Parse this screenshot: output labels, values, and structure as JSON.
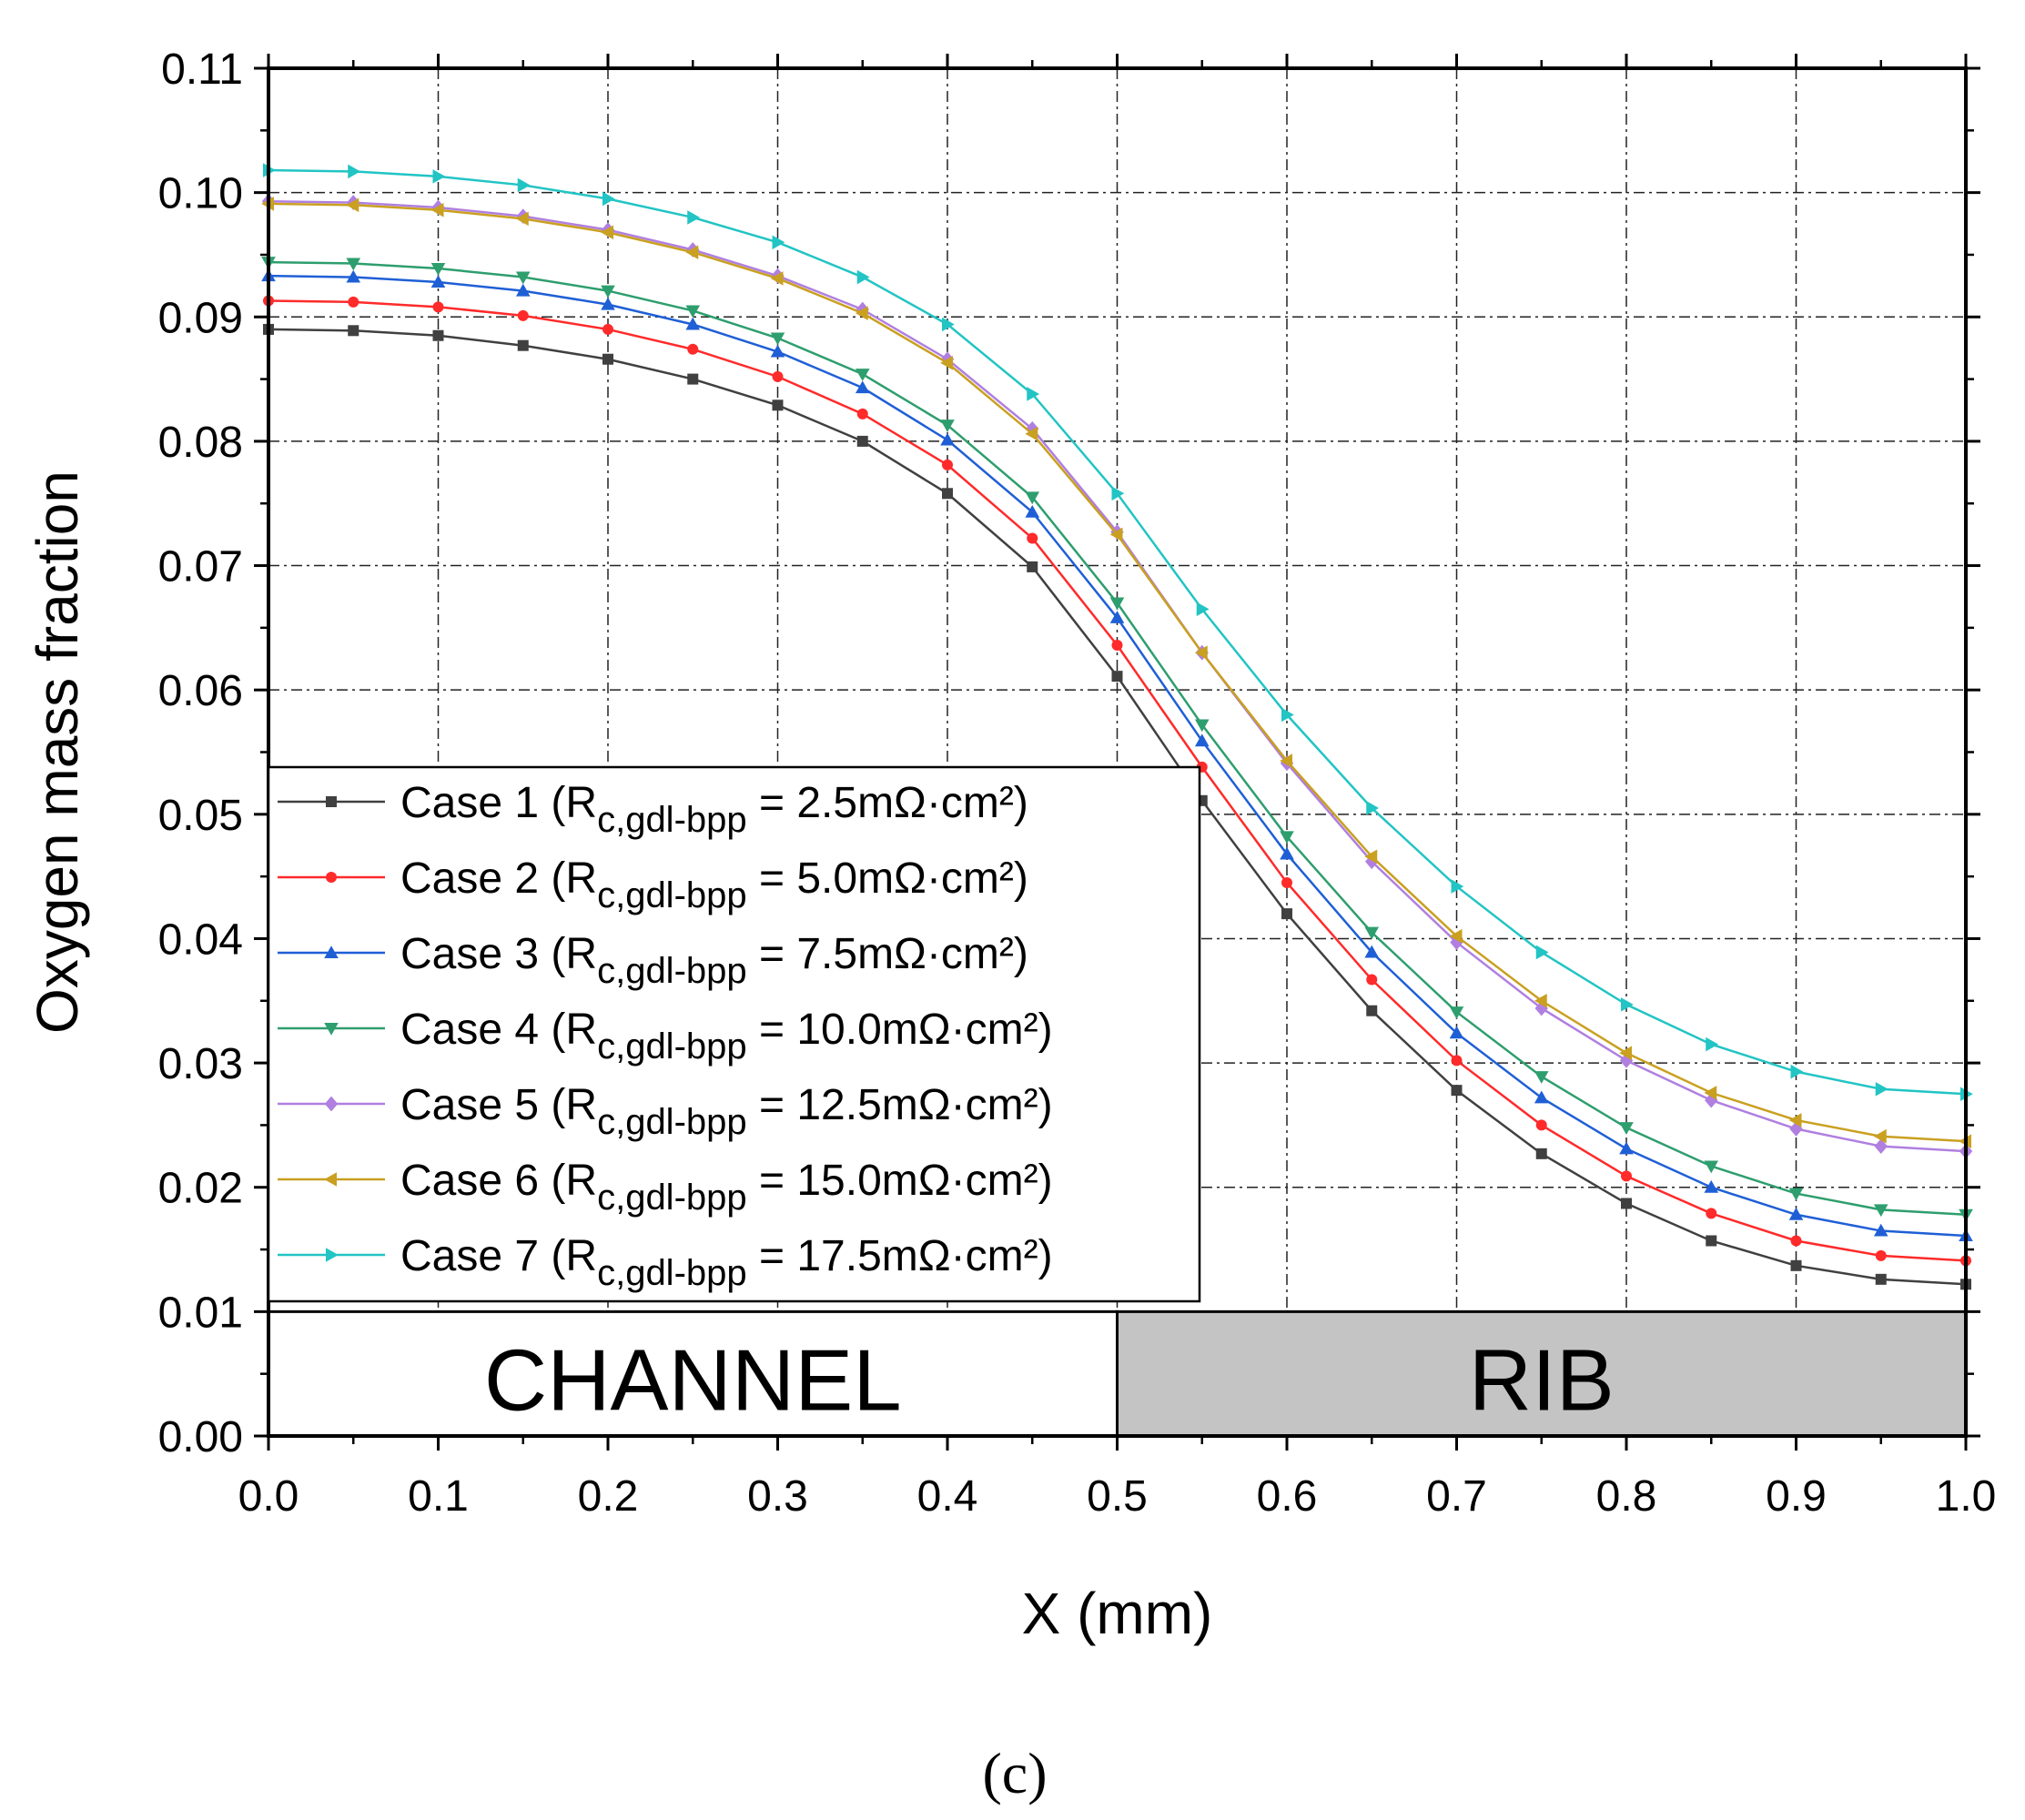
{
  "chart_data": {
    "type": "line",
    "title": "",
    "xlabel": "X (mm)",
    "ylabel": "Oxygen mass fraction",
    "xlim": [
      0.0,
      1.0
    ],
    "ylim": [
      0.0,
      0.11
    ],
    "x_ticks": [
      "0.0",
      "0.1",
      "0.2",
      "0.3",
      "0.4",
      "0.5",
      "0.6",
      "0.7",
      "0.8",
      "0.9",
      "1.0"
    ],
    "y_ticks": [
      "0.00",
      "0.01",
      "0.02",
      "0.03",
      "0.04",
      "0.05",
      "0.06",
      "0.07",
      "0.08",
      "0.09",
      "0.10",
      "0.11"
    ],
    "grid": true,
    "legend_position": "middle-left",
    "regions": [
      {
        "label": "CHANNEL",
        "x_range": [
          0.0,
          0.5
        ],
        "y_range": [
          0.0,
          0.01
        ],
        "color": "#ffffff"
      },
      {
        "label": "RIB",
        "x_range": [
          0.5,
          1.0
        ],
        "y_range": [
          0.0,
          0.01
        ],
        "color": "#c4c4c4"
      }
    ],
    "panel_label": "(c)",
    "x": [
      0.0,
      0.05,
      0.1,
      0.15,
      0.2,
      0.25,
      0.3,
      0.35,
      0.4,
      0.45,
      0.5,
      0.55,
      0.6,
      0.65,
      0.7,
      0.75,
      0.8,
      0.85,
      0.9,
      0.95,
      1.0
    ],
    "series": [
      {
        "name": "Case 1",
        "legend_prefix": "Case 1 (R",
        "legend_sub": "c,gdl-bpp",
        "legend_suffix": " = 2.5mΩ·cm²)",
        "color": "#404040",
        "marker": "square",
        "values": [
          0.089,
          0.0889,
          0.0885,
          0.0877,
          0.0866,
          0.085,
          0.0829,
          0.08,
          0.0758,
          0.0699,
          0.0611,
          0.0511,
          0.042,
          0.0342,
          0.0278,
          0.0227,
          0.0187,
          0.0157,
          0.0137,
          0.0126,
          0.0122
        ]
      },
      {
        "name": "Case 2",
        "legend_prefix": "Case 2 (R",
        "legend_sub": "c,gdl-bpp",
        "legend_suffix": "  = 5.0mΩ·cm²)",
        "color": "#ff2a2a",
        "marker": "circle",
        "values": [
          0.0913,
          0.0912,
          0.0908,
          0.0901,
          0.089,
          0.0874,
          0.0852,
          0.0822,
          0.0781,
          0.0722,
          0.0636,
          0.0538,
          0.0445,
          0.0367,
          0.0302,
          0.025,
          0.0209,
          0.0179,
          0.0157,
          0.0145,
          0.0141
        ]
      },
      {
        "name": "Case 3",
        "legend_prefix": "Case 3 (R",
        "legend_sub": "c,gdl-bpp",
        "legend_suffix": "  = 7.5mΩ·cm²)",
        "color": "#1f5fd6",
        "marker": "triangle-up",
        "values": [
          0.0933,
          0.0932,
          0.0928,
          0.0921,
          0.091,
          0.0894,
          0.0872,
          0.0843,
          0.0801,
          0.0743,
          0.0658,
          0.0559,
          0.0468,
          0.0389,
          0.0324,
          0.0272,
          0.0231,
          0.02,
          0.0178,
          0.0165,
          0.0161
        ]
      },
      {
        "name": "Case 4",
        "legend_prefix": "Case 4 (R",
        "legend_sub": "c,gdl-bpp",
        "legend_suffix": "  = 10.0mΩ·cm²)",
        "color": "#2e9e6e",
        "marker": "triangle-down",
        "values": [
          0.0944,
          0.0943,
          0.0939,
          0.0932,
          0.0921,
          0.0905,
          0.0883,
          0.0854,
          0.0813,
          0.0755,
          0.067,
          0.0572,
          0.0482,
          0.0405,
          0.0341,
          0.0289,
          0.0248,
          0.0217,
          0.0195,
          0.0182,
          0.0178
        ]
      },
      {
        "name": "Case 5",
        "legend_prefix": "Case 5 (R",
        "legend_sub": "c,gdl-bpp",
        "legend_suffix": " = 12.5mΩ·cm²)",
        "color": "#b07fe0",
        "marker": "diamond",
        "values": [
          0.0993,
          0.0992,
          0.0988,
          0.0981,
          0.097,
          0.0954,
          0.0933,
          0.0906,
          0.0866,
          0.081,
          0.0727,
          0.063,
          0.0541,
          0.0462,
          0.0397,
          0.0344,
          0.0302,
          0.027,
          0.0247,
          0.0233,
          0.0229
        ]
      },
      {
        "name": "Case 6",
        "legend_prefix": "Case 6 (R",
        "legend_sub": "c,gdl-bpp",
        "legend_suffix": "  = 15.0mΩ·cm²)",
        "color": "#c9a020",
        "marker": "triangle-left",
        "values": [
          0.0991,
          0.099,
          0.0986,
          0.0979,
          0.0968,
          0.0952,
          0.0931,
          0.0903,
          0.0863,
          0.0806,
          0.0725,
          0.063,
          0.0543,
          0.0466,
          0.0402,
          0.035,
          0.0308,
          0.0276,
          0.0254,
          0.0241,
          0.0237
        ]
      },
      {
        "name": "Case 7",
        "legend_prefix": "Case 7 (R",
        "legend_sub": "c,gdl-bpp",
        "legend_suffix": "  = 17.5mΩ·cm²)",
        "color": "#22c4c4",
        "marker": "triangle-right",
        "values": [
          0.1018,
          0.1017,
          0.1013,
          0.1006,
          0.0995,
          0.098,
          0.096,
          0.0932,
          0.0894,
          0.0838,
          0.0758,
          0.0665,
          0.058,
          0.0505,
          0.0442,
          0.0389,
          0.0347,
          0.0315,
          0.0293,
          0.0279,
          0.0275
        ]
      }
    ]
  }
}
